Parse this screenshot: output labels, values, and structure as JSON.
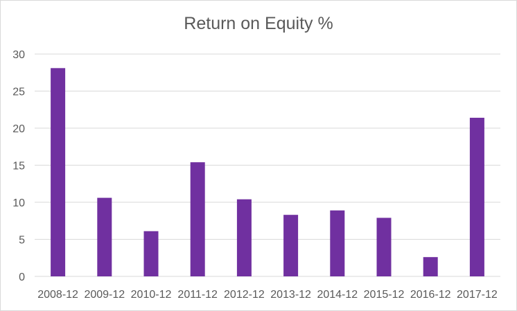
{
  "chart_data": {
    "type": "bar",
    "title": "Return on Equity %",
    "xlabel": "",
    "ylabel": "",
    "categories": [
      "2008-12",
      "2009-12",
      "2010-12",
      "2011-12",
      "2012-12",
      "2013-12",
      "2014-12",
      "2015-12",
      "2016-12",
      "2017-12"
    ],
    "values": [
      28.1,
      10.6,
      6.1,
      15.4,
      10.4,
      8.3,
      8.9,
      7.9,
      2.6,
      21.4
    ],
    "ylim": [
      0,
      30
    ],
    "yticks": [
      "0",
      "5",
      "10",
      "15",
      "20",
      "25",
      "30"
    ],
    "grid": true,
    "legend": "none",
    "colors": {
      "bar": "#7030a0",
      "grid": "#d9d9d9",
      "text": "#595959"
    }
  }
}
